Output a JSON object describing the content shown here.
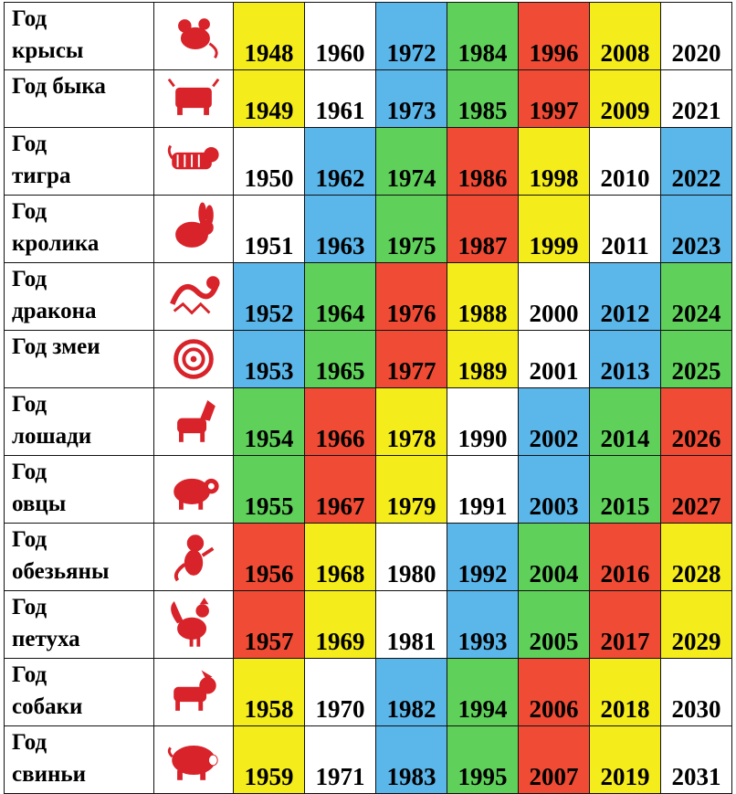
{
  "palette": {
    "yellow": "#f5ec1c",
    "white": "#ffffff",
    "blue": "#5bb6ea",
    "green": "#5fd05a",
    "red": "#ef4b35",
    "icon": "#d8232a"
  },
  "rows": [
    {
      "name": [
        "Год",
        "крысы"
      ],
      "icon": "rat-icon",
      "years": [
        "1948",
        "1960",
        "1972",
        "1984",
        "1996",
        "2008",
        "2020"
      ],
      "colors": [
        "yellow",
        "white",
        "blue",
        "green",
        "red",
        "yellow",
        "white"
      ]
    },
    {
      "name": [
        "Год быка"
      ],
      "icon": "ox-icon",
      "years": [
        "1949",
        "1961",
        "1973",
        "1985",
        "1997",
        "2009",
        "2021"
      ],
      "colors": [
        "yellow",
        "white",
        "blue",
        "green",
        "red",
        "yellow",
        "white"
      ]
    },
    {
      "name": [
        "Год",
        "тигра"
      ],
      "icon": "tiger-icon",
      "years": [
        "1950",
        "1962",
        "1974",
        "1986",
        "1998",
        "2010",
        "2022"
      ],
      "colors": [
        "white",
        "blue",
        "green",
        "red",
        "yellow",
        "white",
        "blue"
      ]
    },
    {
      "name": [
        "Год",
        "кролика"
      ],
      "icon": "rabbit-icon",
      "years": [
        "1951",
        "1963",
        "1975",
        "1987",
        "1999",
        "2011",
        "2023"
      ],
      "colors": [
        "white",
        "blue",
        "green",
        "red",
        "yellow",
        "white",
        "blue"
      ]
    },
    {
      "name": [
        "Год",
        "дракона"
      ],
      "icon": "dragon-icon",
      "years": [
        "1952",
        "1964",
        "1976",
        "1988",
        "2000",
        "2012",
        "2024"
      ],
      "colors": [
        "blue",
        "green",
        "red",
        "yellow",
        "white",
        "blue",
        "green"
      ]
    },
    {
      "name": [
        "Год змеи"
      ],
      "icon": "snake-icon",
      "years": [
        "1953",
        "1965",
        "1977",
        "1989",
        "2001",
        "2013",
        "2025"
      ],
      "colors": [
        "blue",
        "green",
        "red",
        "yellow",
        "white",
        "blue",
        "green"
      ]
    },
    {
      "name": [
        "Год",
        "лошади"
      ],
      "icon": "horse-icon",
      "years": [
        "1954",
        "1966",
        "1978",
        "1990",
        "2002",
        "2014",
        "2026"
      ],
      "colors": [
        "green",
        "red",
        "yellow",
        "white",
        "blue",
        "green",
        "red"
      ]
    },
    {
      "name": [
        "Год",
        "овцы"
      ],
      "icon": "sheep-icon",
      "years": [
        "1955",
        "1967",
        "1979",
        "1991",
        "2003",
        "2015",
        "2027"
      ],
      "colors": [
        "green",
        "red",
        "yellow",
        "white",
        "blue",
        "green",
        "red"
      ]
    },
    {
      "name": [
        "Год",
        "обезьяны"
      ],
      "icon": "monkey-icon",
      "years": [
        "1956",
        "1968",
        "1980",
        "1992",
        "2004",
        "2016",
        "2028"
      ],
      "colors": [
        "red",
        "yellow",
        "white",
        "blue",
        "green",
        "red",
        "yellow"
      ]
    },
    {
      "name": [
        "Год",
        "петуха"
      ],
      "icon": "rooster-icon",
      "years": [
        "1957",
        "1969",
        "1981",
        "1993",
        "2005",
        "2017",
        "2029"
      ],
      "colors": [
        "red",
        "yellow",
        "white",
        "blue",
        "green",
        "red",
        "yellow"
      ]
    },
    {
      "name": [
        "Год",
        "собаки"
      ],
      "icon": "dog-icon",
      "years": [
        "1958",
        "1970",
        "1982",
        "1994",
        "2006",
        "2018",
        "2030"
      ],
      "colors": [
        "yellow",
        "white",
        "blue",
        "green",
        "red",
        "yellow",
        "white"
      ]
    },
    {
      "name": [
        "Год",
        "свиньи"
      ],
      "icon": "pig-icon",
      "years": [
        "1959",
        "1971",
        "1983",
        "1995",
        "2007",
        "2019",
        "2031"
      ],
      "colors": [
        "yellow",
        "white",
        "blue",
        "green",
        "red",
        "yellow",
        "white"
      ]
    }
  ]
}
